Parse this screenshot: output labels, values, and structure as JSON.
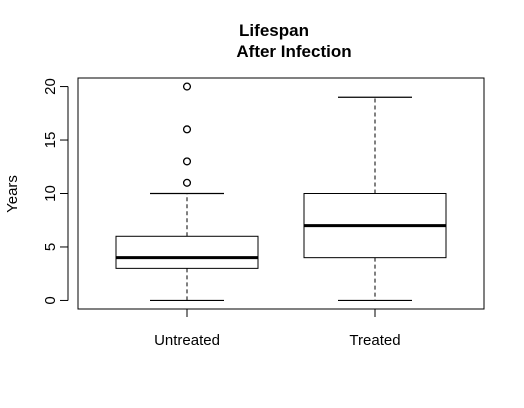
{
  "chart_data": {
    "type": "boxplot",
    "title_lines": [
      "Lifespan",
      "After Infection"
    ],
    "xlabel": "",
    "ylabel": "Years",
    "ylim": [
      -0.8,
      20.8
    ],
    "yticks": [
      0,
      5,
      10,
      15,
      20
    ],
    "ytick_labels": [
      "0",
      "5",
      "10",
      "15",
      "20"
    ],
    "categories": [
      "Untreated",
      "Treated"
    ],
    "boxes": [
      {
        "label": "Untreated",
        "whisker_low": 0,
        "q1": 3,
        "median": 4,
        "q3": 6,
        "whisker_high": 10,
        "outliers": [
          11,
          13,
          16,
          20
        ]
      },
      {
        "label": "Treated",
        "whisker_low": 0,
        "q1": 4,
        "median": 7,
        "q3": 10,
        "whisker_high": 19,
        "outliers": []
      }
    ],
    "colors": {
      "box_fill": "#ffffff",
      "stroke": "#000000"
    },
    "grid": false,
    "legend": "none"
  }
}
